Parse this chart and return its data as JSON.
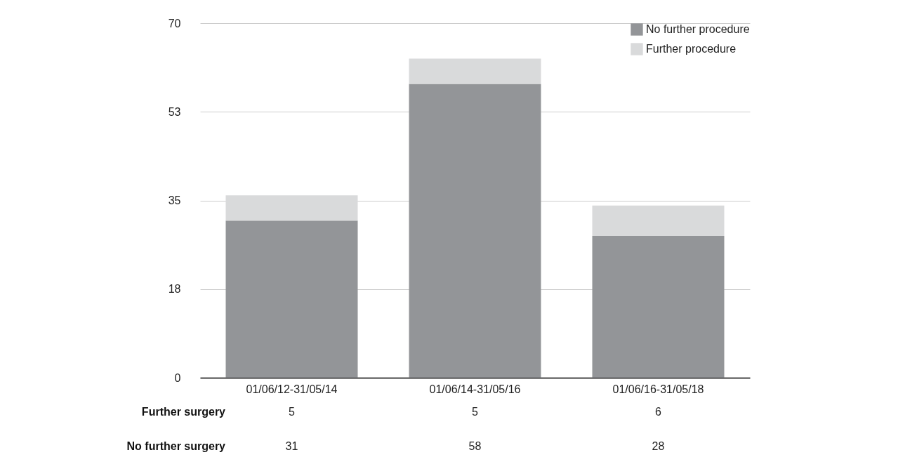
{
  "chart_data": {
    "type": "bar",
    "stacked": true,
    "categories": [
      "01/06/12-31/05/14",
      "01/06/14-31/05/16",
      "01/06/16-31/05/18"
    ],
    "series": [
      {
        "name": "No further procedure",
        "color": "#939598",
        "values": [
          31,
          58,
          28
        ]
      },
      {
        "name": "Further procedure",
        "color": "#d9dadb",
        "values": [
          5,
          5,
          6
        ]
      }
    ],
    "ylim": [
      0,
      70
    ],
    "yticks": [
      0,
      {
        "value": 17.5,
        "label": "18"
      },
      35,
      {
        "value": 52.5,
        "label": "53"
      },
      70
    ],
    "grid": "y",
    "legend": "top right",
    "data_labels": true,
    "annotations": [
      "Further surgery",
      "No further surgery"
    ]
  }
}
